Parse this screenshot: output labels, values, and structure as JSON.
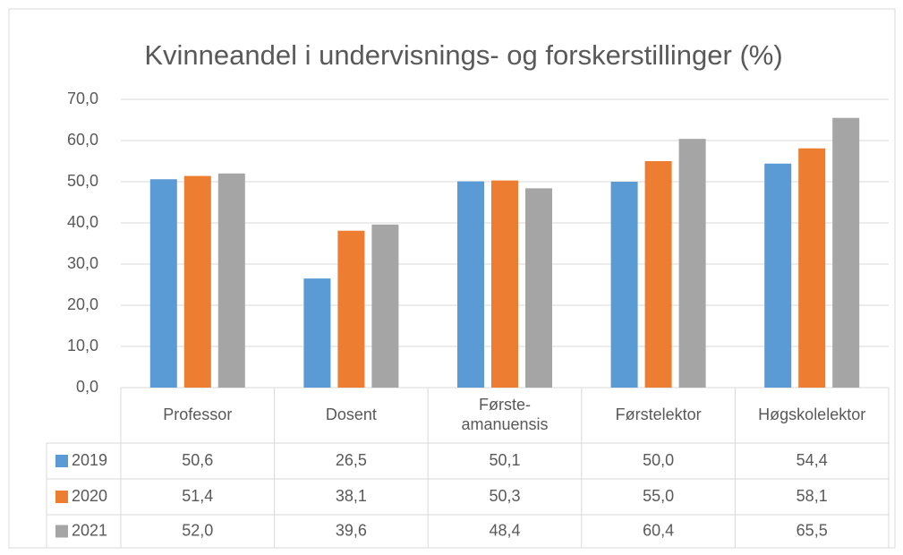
{
  "chart_data": {
    "type": "bar",
    "title": "Kvinneandel i undervisnings- og forskerstillinger (%)",
    "categories": [
      "Professor",
      "Dosent",
      "Første-amanuensis",
      "Førstelektor",
      "Høgskolelektor"
    ],
    "series": [
      {
        "name": "2019",
        "color": "#5b9bd5",
        "values": [
          50.6,
          26.5,
          50.1,
          50.0,
          54.4
        ],
        "value_labels": [
          "50,6",
          "26,5",
          "50,1",
          "50,0",
          "54,4"
        ]
      },
      {
        "name": "2020",
        "color": "#ed7d31",
        "values": [
          51.4,
          38.1,
          50.3,
          55.0,
          58.1
        ],
        "value_labels": [
          "51,4",
          "38,1",
          "50,3",
          "55,0",
          "58,1"
        ]
      },
      {
        "name": "2021",
        "color": "#a5a5a5",
        "values": [
          52.0,
          39.6,
          48.4,
          60.4,
          65.5
        ],
        "value_labels": [
          "52,0",
          "39,6",
          "48,4",
          "60,4",
          "65,5"
        ]
      }
    ],
    "ylim": [
      0,
      70
    ],
    "yticks": [
      {
        "value": 0,
        "label": "0,0"
      },
      {
        "value": 10,
        "label": "10,0"
      },
      {
        "value": 20,
        "label": "20,0"
      },
      {
        "value": 30,
        "label": "30,0"
      },
      {
        "value": 40,
        "label": "40,0"
      },
      {
        "value": 50,
        "label": "50,0"
      },
      {
        "value": 60,
        "label": "60,0"
      },
      {
        "value": 70,
        "label": "70,0"
      }
    ],
    "grid": true
  }
}
